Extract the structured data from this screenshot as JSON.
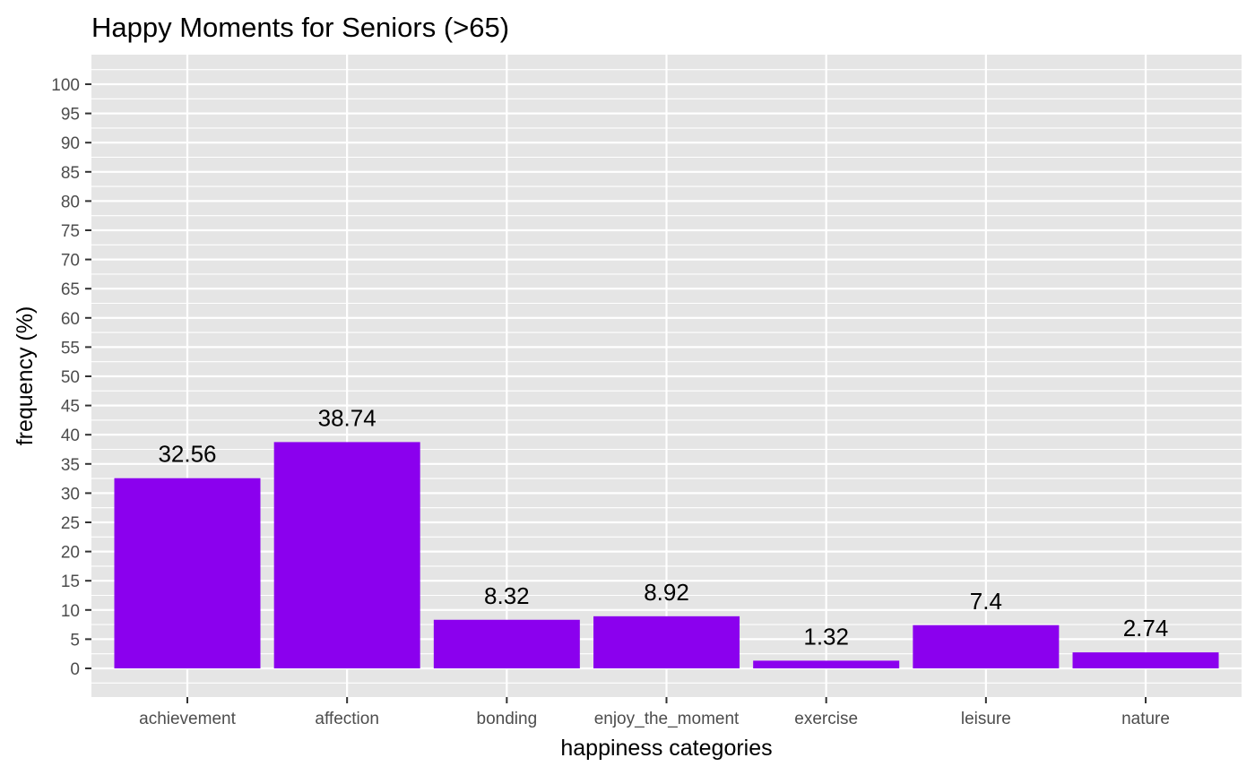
{
  "chart_data": {
    "type": "bar",
    "title": "Happy Moments for Seniors (>65)",
    "xlabel": "happiness categories",
    "ylabel": "frequency (%)",
    "categories": [
      "achievement",
      "affection",
      "bonding",
      "enjoy_the_moment",
      "exercise",
      "leisure",
      "nature"
    ],
    "values": [
      32.56,
      38.74,
      8.32,
      8.92,
      1.32,
      7.4,
      2.74
    ],
    "value_labels": [
      "32.56",
      "38.74",
      "8.32",
      "8.92",
      "1.32",
      "7.4",
      "2.74"
    ],
    "ylim": [
      0,
      100
    ],
    "yticks": [
      0,
      5,
      10,
      15,
      20,
      25,
      30,
      35,
      40,
      45,
      50,
      55,
      60,
      65,
      70,
      75,
      80,
      85,
      90,
      95,
      100
    ],
    "ytick_labels": [
      "0",
      "5",
      "10",
      "15",
      "20",
      "25",
      "30",
      "35",
      "40",
      "45",
      "50",
      "55",
      "60",
      "65",
      "70",
      "75",
      "80",
      "85",
      "90",
      "95",
      "100"
    ],
    "bar_color": "#8B00EE",
    "panel_color": "#E5E5E5",
    "grid_color": "#FFFFFF",
    "grid": true,
    "legend": "none"
  }
}
